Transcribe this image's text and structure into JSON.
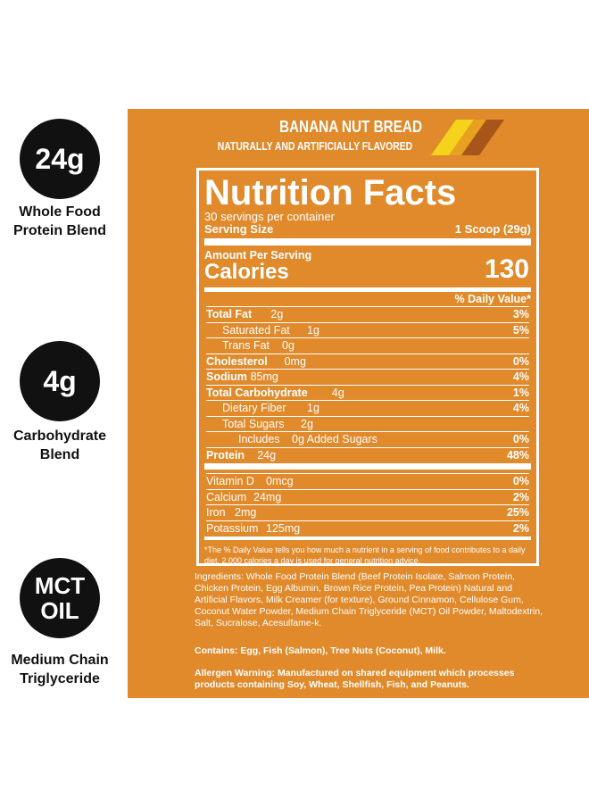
{
  "features": [
    {
      "value": "24g",
      "label": "Whole Food Protein Blend"
    },
    {
      "value": "4g",
      "label": "Carbohydrate Blend"
    },
    {
      "value": "MCT OIL",
      "label": "Medium Chain Triglyceride"
    }
  ],
  "label": {
    "flavor": "BANANA NUT BREAD",
    "flavor_note": "NATURALLY AND ARTIFICIALLY FLAVORED",
    "title": "Nutrition Facts",
    "servings": "30 servings per container",
    "serving_size_label": "Serving Size",
    "serving_size": "1 Scoop (29g)",
    "amount_per_serving": "Amount Per Serving",
    "calories_label": "Calories",
    "calories": "130",
    "dv_header": "% Daily Value*",
    "nutrients": [
      {
        "name": "Total Fat",
        "amount": "2g",
        "dv": "3%",
        "bold": true,
        "indent": 0
      },
      {
        "name": "Saturated Fat",
        "amount": "1g",
        "dv": "5%",
        "bold": false,
        "indent": 1
      },
      {
        "name": "Trans Fat",
        "amount": "0g",
        "dv": null,
        "bold": false,
        "indent": 1
      },
      {
        "name": "Cholesterol",
        "amount": "0mg",
        "dv": "0%",
        "bold": true,
        "indent": 0
      },
      {
        "name": "Sodium",
        "amount": "85mg",
        "dv": "4%",
        "bold": true,
        "indent": 0
      },
      {
        "name": "Total Carbohydrate",
        "amount": "4g",
        "dv": "1%",
        "bold": true,
        "indent": 0
      },
      {
        "name": "Dietary Fiber",
        "amount": "1g",
        "dv": "4%",
        "bold": false,
        "indent": 1
      },
      {
        "name": "Total Sugars",
        "amount": "2g",
        "dv": null,
        "bold": false,
        "indent": 1
      },
      {
        "name": "Includes",
        "amount": "0g Added Sugars",
        "dv": "0%",
        "bold": false,
        "indent": 2
      },
      {
        "name": "Protein",
        "amount": "24g",
        "dv": "48%",
        "bold": true,
        "indent": 0
      }
    ],
    "vitamins": [
      {
        "name": "Vitamin D",
        "amount": "0mcg",
        "dv": "0%"
      },
      {
        "name": "Calcium",
        "amount": "24mg",
        "dv": "2%"
      },
      {
        "name": "Iron",
        "amount": "2mg",
        "dv": "25%"
      },
      {
        "name": "Potassium",
        "amount": "125mg",
        "dv": "2%"
      }
    ],
    "footnote": "*The % Daily Value tells you how much a nutrient in a serving of food contributes to a daily diet. 2,000 calories a day is used for general nutrition advice.",
    "ingredients": "Ingredients: Whole Food Protein Blend (Beef Protein Isolate, Salmon Protein, Chicken Protein, Egg Albumin, Brown Rice Protein, Pea Protein) Natural and Artificial Flavors, Milk Creamer (for texture), Ground Cinnamon, Cellulose Gum, Coconut Water Powder, Medium Chain Triglyceride (MCT) Oil Powder, Maltodextrin, Salt, Sucralose, Acesulfame-k.",
    "contains": "Contains: Egg, Fish (Salmon), Tree Nuts (Coconut), Milk.",
    "allergen": "Allergen Warning: Manufactured on shared equipment which processes products containing Soy, Wheat, Shellfish, Fish, and Peanuts."
  }
}
